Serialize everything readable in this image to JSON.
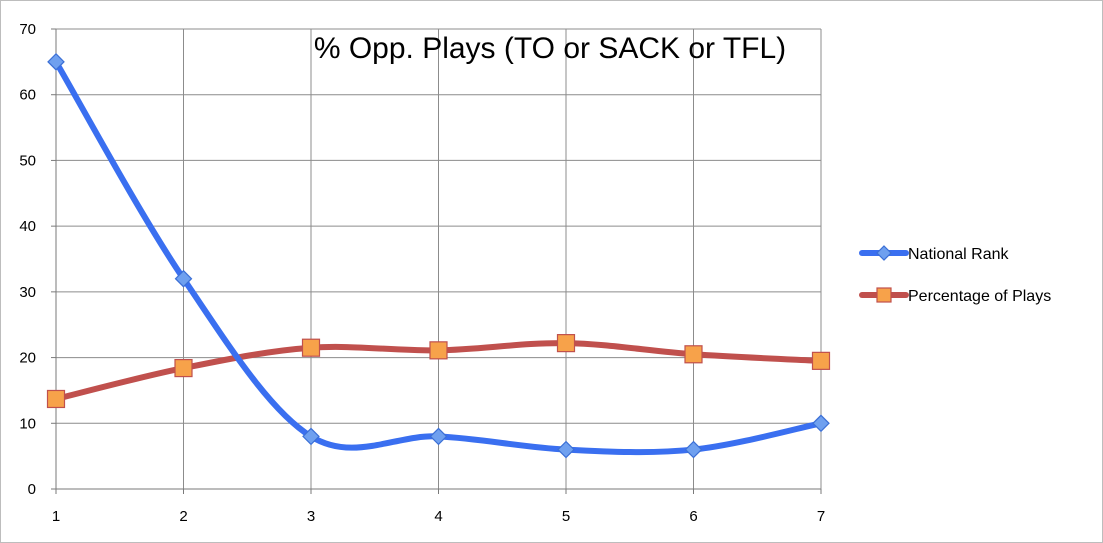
{
  "chart_data": {
    "type": "line",
    "title": "% Opp. Plays (TO or SACK or TFL)",
    "categories": [
      "1",
      "2",
      "3",
      "4",
      "5",
      "6",
      "7"
    ],
    "xlabel": "",
    "ylabel": "",
    "ylim": [
      0,
      70
    ],
    "yticks": [
      "0",
      "10",
      "20",
      "30",
      "40",
      "50",
      "60",
      "70"
    ],
    "grid": true,
    "legend_position": "right",
    "series": [
      {
        "name": "National Rank",
        "values": [
          65,
          32,
          8,
          8,
          6,
          6,
          10
        ],
        "color": "#3a6ff0",
        "marker": "diamond",
        "marker_color": "#6fa0ef",
        "smooth": true
      },
      {
        "name": "Percentage of Plays",
        "values": [
          13.7,
          18.4,
          21.5,
          21.1,
          22.2,
          20.5,
          19.5
        ],
        "color": "#c0504d",
        "marker": "square",
        "marker_color": "#f7a24a",
        "smooth": true
      }
    ]
  }
}
